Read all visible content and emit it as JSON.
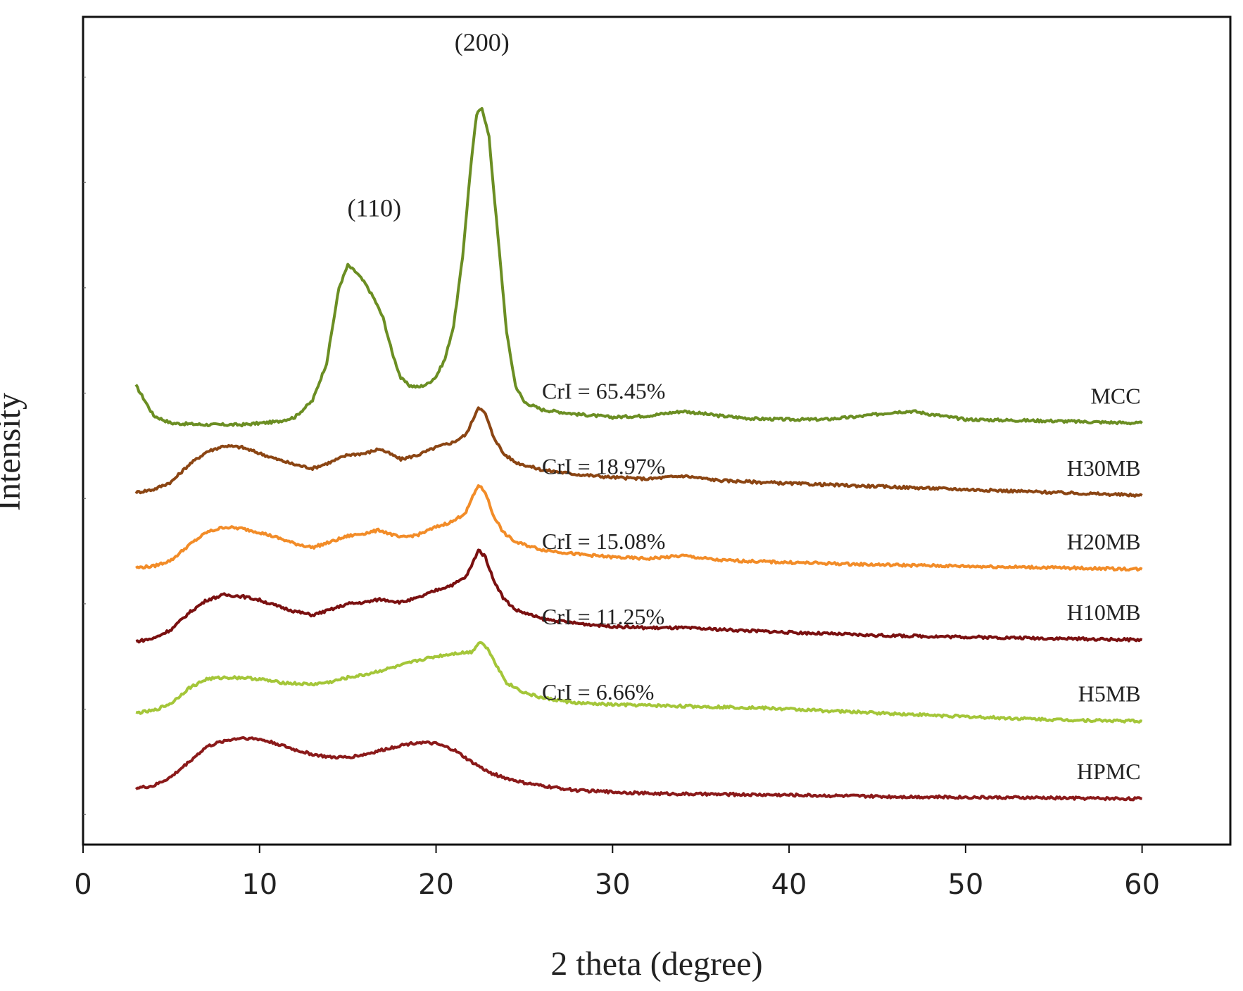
{
  "chart_data": {
    "type": "line",
    "xlabel": "2 theta (degree)",
    "ylabel": "Intensity",
    "xlim": [
      0,
      65
    ],
    "x_ticks": [
      "0",
      "10",
      "20",
      "30",
      "40",
      "50",
      "60"
    ],
    "grid": false,
    "y_tick_labels_shown": false,
    "series": [
      {
        "name": "MCC",
        "color": "#6b8e23",
        "crystallinity_label": "CrI = 65.45%",
        "offset": 5,
        "points": [
          [
            3,
            0.5
          ],
          [
            4,
            0.1
          ],
          [
            5,
            0.0
          ],
          [
            7,
            -0.02
          ],
          [
            9,
            -0.02
          ],
          [
            11,
            0.02
          ],
          [
            12,
            0.08
          ],
          [
            13,
            0.3
          ],
          [
            13.8,
            0.8
          ],
          [
            14.5,
            1.8
          ],
          [
            15,
            2.1
          ],
          [
            15.5,
            2.0
          ],
          [
            16,
            1.85
          ],
          [
            16.5,
            1.65
          ],
          [
            17,
            1.4
          ],
          [
            17.5,
            0.95
          ],
          [
            18,
            0.6
          ],
          [
            18.5,
            0.5
          ],
          [
            19,
            0.48
          ],
          [
            19.5,
            0.52
          ],
          [
            20,
            0.62
          ],
          [
            20.5,
            0.85
          ],
          [
            21,
            1.3
          ],
          [
            21.5,
            2.2
          ],
          [
            22,
            3.5
          ],
          [
            22.3,
            4.1
          ],
          [
            22.6,
            4.2
          ],
          [
            23,
            3.8
          ],
          [
            23.5,
            2.5
          ],
          [
            24,
            1.2
          ],
          [
            24.5,
            0.5
          ],
          [
            25,
            0.28
          ],
          [
            26,
            0.18
          ],
          [
            28,
            0.12
          ],
          [
            30,
            0.08
          ],
          [
            32,
            0.1
          ],
          [
            34,
            0.16
          ],
          [
            36,
            0.1
          ],
          [
            38,
            0.06
          ],
          [
            40,
            0.05
          ],
          [
            42,
            0.05
          ],
          [
            44,
            0.09
          ],
          [
            46,
            0.15
          ],
          [
            47,
            0.16
          ],
          [
            48,
            0.12
          ],
          [
            50,
            0.05
          ],
          [
            55,
            0.03
          ],
          [
            60,
            0.0
          ]
        ]
      },
      {
        "name": "H30MB",
        "color": "#8b4513",
        "crystallinity_label": "CrI = 18.97%",
        "offset": 4,
        "points": [
          [
            3,
            0.08
          ],
          [
            4,
            0.12
          ],
          [
            5,
            0.22
          ],
          [
            6,
            0.45
          ],
          [
            7,
            0.62
          ],
          [
            8,
            0.7
          ],
          [
            9,
            0.68
          ],
          [
            10,
            0.6
          ],
          [
            11,
            0.52
          ],
          [
            12,
            0.45
          ],
          [
            13,
            0.4
          ],
          [
            14,
            0.48
          ],
          [
            15,
            0.58
          ],
          [
            16,
            0.6
          ],
          [
            16.8,
            0.66
          ],
          [
            17.5,
            0.58
          ],
          [
            18,
            0.52
          ],
          [
            19,
            0.58
          ],
          [
            20,
            0.68
          ],
          [
            21,
            0.75
          ],
          [
            21.7,
            0.85
          ],
          [
            22,
            1.0
          ],
          [
            22.4,
            1.22
          ],
          [
            22.8,
            1.12
          ],
          [
            23.2,
            0.85
          ],
          [
            23.8,
            0.6
          ],
          [
            24.5,
            0.48
          ],
          [
            26,
            0.38
          ],
          [
            28,
            0.32
          ],
          [
            30,
            0.28
          ],
          [
            32,
            0.26
          ],
          [
            34,
            0.3
          ],
          [
            36,
            0.24
          ],
          [
            40,
            0.2
          ],
          [
            45,
            0.16
          ],
          [
            50,
            0.12
          ],
          [
            55,
            0.08
          ],
          [
            60,
            0.04
          ]
        ]
      },
      {
        "name": "H20MB",
        "color": "#f28c28",
        "crystallinity_label": "CrI = 15.08%",
        "offset": 3,
        "points": [
          [
            3,
            0.08
          ],
          [
            4,
            0.1
          ],
          [
            5,
            0.18
          ],
          [
            6,
            0.38
          ],
          [
            7,
            0.55
          ],
          [
            8,
            0.62
          ],
          [
            9,
            0.6
          ],
          [
            10,
            0.55
          ],
          [
            11,
            0.48
          ],
          [
            12,
            0.4
          ],
          [
            13,
            0.35
          ],
          [
            14,
            0.42
          ],
          [
            15,
            0.5
          ],
          [
            16,
            0.54
          ],
          [
            16.8,
            0.58
          ],
          [
            17.5,
            0.52
          ],
          [
            18,
            0.48
          ],
          [
            19,
            0.52
          ],
          [
            20,
            0.62
          ],
          [
            21,
            0.7
          ],
          [
            21.7,
            0.82
          ],
          [
            22,
            0.98
          ],
          [
            22.4,
            1.18
          ],
          [
            22.8,
            1.08
          ],
          [
            23.2,
            0.8
          ],
          [
            23.8,
            0.55
          ],
          [
            24.5,
            0.42
          ],
          [
            26,
            0.32
          ],
          [
            28,
            0.26
          ],
          [
            30,
            0.22
          ],
          [
            32,
            0.2
          ],
          [
            34,
            0.24
          ],
          [
            36,
            0.18
          ],
          [
            40,
            0.15
          ],
          [
            45,
            0.12
          ],
          [
            50,
            0.1
          ],
          [
            55,
            0.08
          ],
          [
            60,
            0.06
          ]
        ]
      },
      {
        "name": "H10MB",
        "color": "#7a1010",
        "crystallinity_label": "CrI = 11.25%",
        "offset": 2,
        "points": [
          [
            3,
            0.1
          ],
          [
            4,
            0.14
          ],
          [
            5,
            0.26
          ],
          [
            6,
            0.48
          ],
          [
            7,
            0.65
          ],
          [
            8,
            0.72
          ],
          [
            9,
            0.7
          ],
          [
            10,
            0.65
          ],
          [
            11,
            0.57
          ],
          [
            12,
            0.5
          ],
          [
            13,
            0.45
          ],
          [
            14,
            0.52
          ],
          [
            15,
            0.6
          ],
          [
            16,
            0.62
          ],
          [
            16.8,
            0.66
          ],
          [
            17.5,
            0.64
          ],
          [
            18,
            0.62
          ],
          [
            19,
            0.68
          ],
          [
            20,
            0.78
          ],
          [
            21,
            0.86
          ],
          [
            21.7,
            0.96
          ],
          [
            22,
            1.1
          ],
          [
            22.4,
            1.32
          ],
          [
            22.8,
            1.22
          ],
          [
            23.2,
            0.95
          ],
          [
            23.8,
            0.68
          ],
          [
            24.5,
            0.52
          ],
          [
            26,
            0.4
          ],
          [
            28,
            0.34
          ],
          [
            30,
            0.3
          ],
          [
            32,
            0.28
          ],
          [
            34,
            0.28
          ],
          [
            36,
            0.26
          ],
          [
            40,
            0.22
          ],
          [
            45,
            0.18
          ],
          [
            50,
            0.16
          ],
          [
            55,
            0.14
          ],
          [
            60,
            0.12
          ]
        ]
      },
      {
        "name": "H5MB",
        "color": "#a4c639",
        "crystallinity_label": "CrI = 6.66%",
        "offset": 1,
        "points": [
          [
            3,
            0.15
          ],
          [
            4,
            0.18
          ],
          [
            5,
            0.28
          ],
          [
            6,
            0.48
          ],
          [
            7,
            0.6
          ],
          [
            8,
            0.62
          ],
          [
            9,
            0.62
          ],
          [
            10,
            0.6
          ],
          [
            11,
            0.56
          ],
          [
            12,
            0.54
          ],
          [
            13,
            0.53
          ],
          [
            14,
            0.56
          ],
          [
            15,
            0.62
          ],
          [
            16,
            0.66
          ],
          [
            17,
            0.72
          ],
          [
            18,
            0.78
          ],
          [
            19,
            0.85
          ],
          [
            20,
            0.9
          ],
          [
            21,
            0.94
          ],
          [
            22,
            0.96
          ],
          [
            22.5,
            1.1
          ],
          [
            23,
            0.98
          ],
          [
            23.5,
            0.75
          ],
          [
            24,
            0.55
          ],
          [
            25,
            0.42
          ],
          [
            26,
            0.35
          ],
          [
            28,
            0.28
          ],
          [
            30,
            0.26
          ],
          [
            32,
            0.25
          ],
          [
            34,
            0.24
          ],
          [
            38,
            0.22
          ],
          [
            42,
            0.18
          ],
          [
            46,
            0.14
          ],
          [
            50,
            0.1
          ],
          [
            55,
            0.06
          ],
          [
            60,
            0.04
          ]
        ]
      },
      {
        "name": "HPMC",
        "color": "#8b1a1a",
        "crystallinity_label": "",
        "offset": 0,
        "points": [
          [
            3,
            0.15
          ],
          [
            4,
            0.18
          ],
          [
            5,
            0.3
          ],
          [
            6,
            0.5
          ],
          [
            7,
            0.7
          ],
          [
            8,
            0.78
          ],
          [
            9,
            0.82
          ],
          [
            10,
            0.8
          ],
          [
            11,
            0.74
          ],
          [
            12,
            0.66
          ],
          [
            13,
            0.6
          ],
          [
            14,
            0.56
          ],
          [
            15,
            0.56
          ],
          [
            16,
            0.6
          ],
          [
            17,
            0.66
          ],
          [
            18,
            0.72
          ],
          [
            19,
            0.76
          ],
          [
            20,
            0.74
          ],
          [
            21,
            0.66
          ],
          [
            22,
            0.5
          ],
          [
            23,
            0.36
          ],
          [
            24,
            0.28
          ],
          [
            25,
            0.22
          ],
          [
            26,
            0.18
          ],
          [
            28,
            0.12
          ],
          [
            30,
            0.1
          ],
          [
            32,
            0.08
          ],
          [
            35,
            0.07
          ],
          [
            40,
            0.06
          ],
          [
            45,
            0.04
          ],
          [
            50,
            0.03
          ],
          [
            55,
            0.02
          ],
          [
            60,
            0.01
          ]
        ]
      }
    ],
    "peak_annotations": [
      {
        "label": "(110)",
        "x": 16.5,
        "y": 7.75
      },
      {
        "label": "(200)",
        "x": 22.6,
        "y": 9.95
      }
    ]
  }
}
